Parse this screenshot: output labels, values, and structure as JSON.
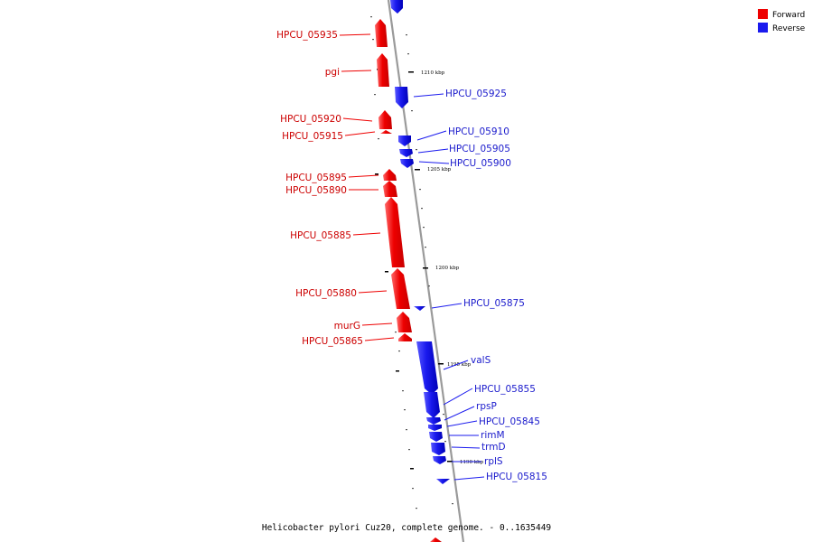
{
  "colors": {
    "forward": "#ee0000",
    "reverse": "#1a1aee",
    "backbone": "#9a9a9a"
  },
  "legend": {
    "forward_label": "Forward",
    "reverse_label": "Reverse"
  },
  "footer": {
    "caption": "Helicobacter pylori Cuz20, complete genome. - 0..1635449"
  },
  "ticks": {
    "t1210": "1210 kbp",
    "t1205": "1205 kbp",
    "t1200": "1200 kbp",
    "t1195": "1195 kbp",
    "t1190": "1190 kbp"
  },
  "genes": {
    "g05935": "HPCU_05935",
    "pgi": "pgi",
    "g05925": "HPCU_05925",
    "g05920": "HPCU_05920",
    "g05915": "HPCU_05915",
    "g05910": "HPCU_05910",
    "g05905": "HPCU_05905",
    "g05900": "HPCU_05900",
    "g05895": "HPCU_05895",
    "g05890": "HPCU_05890",
    "g05885": "HPCU_05885",
    "g05880": "HPCU_05880",
    "g05875": "HPCU_05875",
    "murG": "murG",
    "g05865": "HPCU_05865",
    "valS": "valS",
    "g05855": "HPCU_05855",
    "rpsP": "rpsP",
    "g05845": "HPCU_05845",
    "rimM": "rimM",
    "trmD": "trmD",
    "rplS": "rplS",
    "g05815": "HPCU_05815"
  }
}
